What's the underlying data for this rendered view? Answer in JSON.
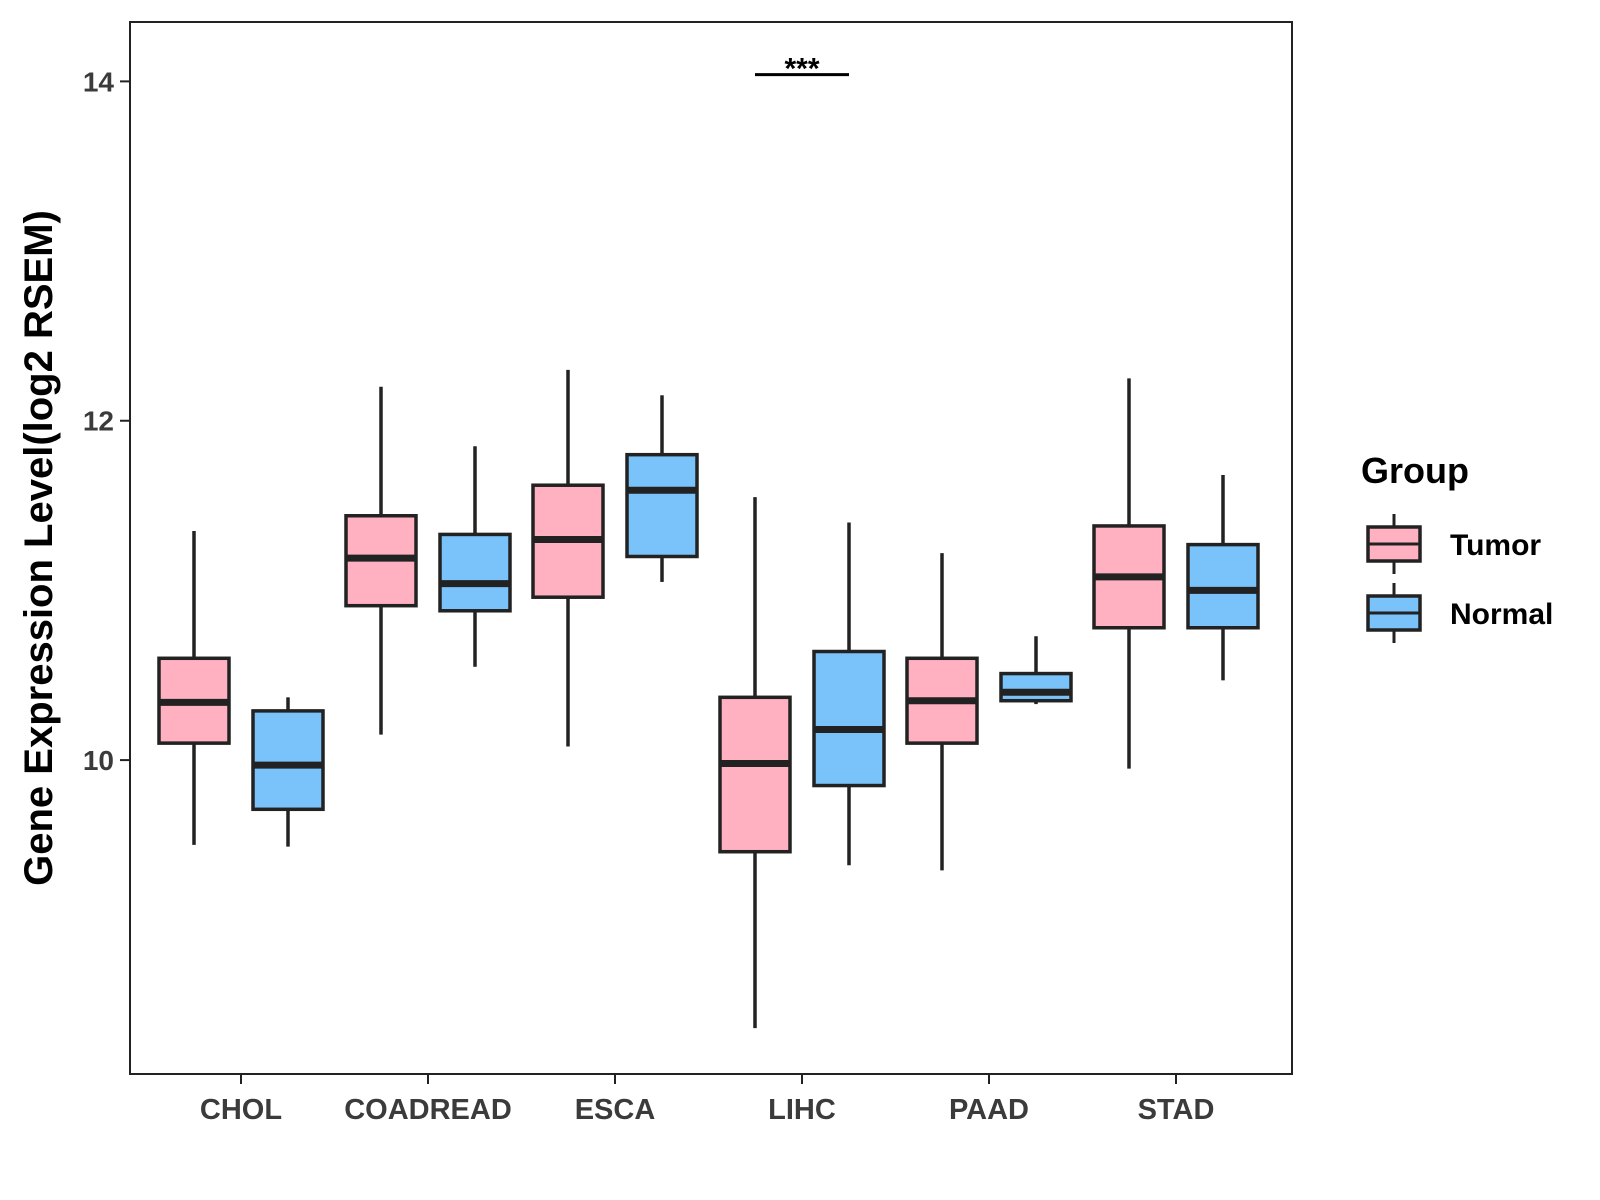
{
  "chart_data": {
    "type": "boxplot",
    "title": "",
    "xlabel": "",
    "ylabel": "Gene Expression Level(log2 RSEM)",
    "ylim": [
      8.15,
      14.35
    ],
    "yticks": [
      10,
      12,
      14
    ],
    "ytick_labels": [
      "10",
      "12",
      "14"
    ],
    "categories": [
      "CHOL",
      "COADREAD",
      "ESCA",
      "LIHC",
      "PAAD",
      "STAD"
    ],
    "legend_title": "Group",
    "series": [
      {
        "name": "Tumor",
        "color": "#FFB0C1",
        "boxes": [
          {
            "category": "CHOL",
            "whisker_low": 9.5,
            "q1": 10.1,
            "median": 10.34,
            "q3": 10.6,
            "whisker_high": 11.35
          },
          {
            "category": "COADREAD",
            "whisker_low": 10.15,
            "q1": 10.91,
            "median": 11.19,
            "q3": 11.44,
            "whisker_high": 12.2
          },
          {
            "category": "ESCA",
            "whisker_low": 10.08,
            "q1": 10.96,
            "median": 11.3,
            "q3": 11.62,
            "whisker_high": 12.3
          },
          {
            "category": "LIHC",
            "whisker_low": 8.42,
            "q1": 9.46,
            "median": 9.98,
            "q3": 10.37,
            "whisker_high": 11.55
          },
          {
            "category": "PAAD",
            "whisker_low": 9.35,
            "q1": 10.1,
            "median": 10.35,
            "q3": 10.6,
            "whisker_high": 11.22
          },
          {
            "category": "STAD",
            "whisker_low": 9.95,
            "q1": 10.78,
            "median": 11.08,
            "q3": 11.38,
            "whisker_high": 12.25
          }
        ]
      },
      {
        "name": "Normal",
        "color": "#7AC2FA",
        "boxes": [
          {
            "category": "CHOL",
            "whisker_low": 9.49,
            "q1": 9.71,
            "median": 9.97,
            "q3": 10.29,
            "whisker_high": 10.37
          },
          {
            "category": "COADREAD",
            "whisker_low": 10.55,
            "q1": 10.88,
            "median": 11.04,
            "q3": 11.33,
            "whisker_high": 11.85
          },
          {
            "category": "ESCA",
            "whisker_low": 11.05,
            "q1": 11.2,
            "median": 11.59,
            "q3": 11.8,
            "whisker_high": 12.15
          },
          {
            "category": "LIHC",
            "whisker_low": 9.38,
            "q1": 9.85,
            "median": 10.18,
            "q3": 10.64,
            "whisker_high": 11.4
          },
          {
            "category": "PAAD",
            "whisker_low": 10.33,
            "q1": 10.35,
            "median": 10.4,
            "q3": 10.51,
            "whisker_high": 10.73
          },
          {
            "category": "STAD",
            "whisker_low": 10.47,
            "q1": 10.78,
            "median": 11.0,
            "q3": 11.27,
            "whisker_high": 11.68
          }
        ]
      }
    ],
    "annotations": [
      {
        "category": "LIHC",
        "text": "***",
        "y": 14.04
      }
    ]
  }
}
